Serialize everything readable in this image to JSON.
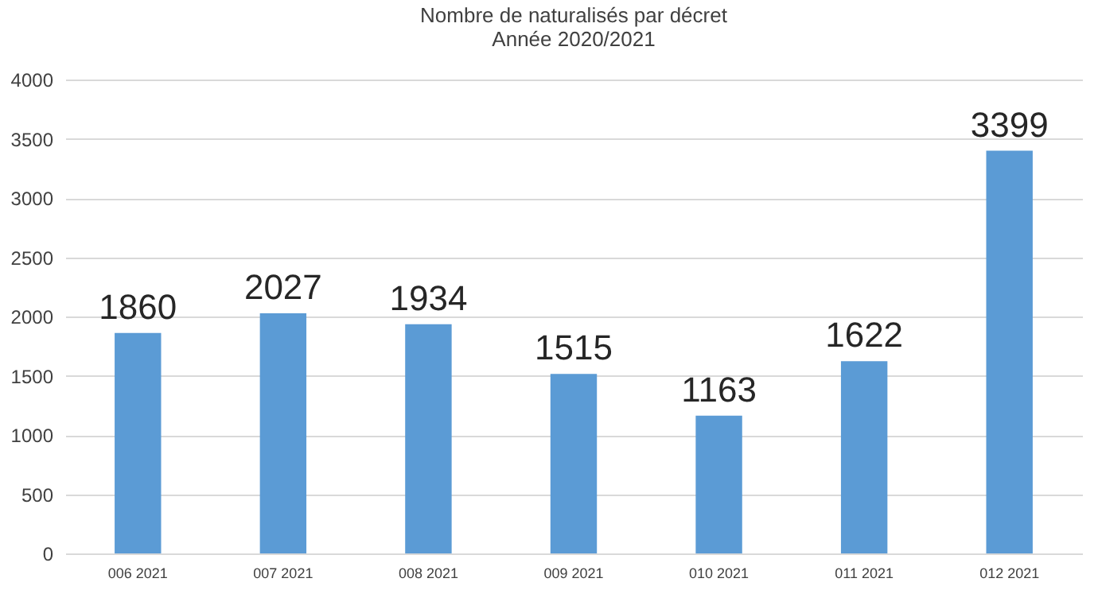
{
  "chart_data": {
    "type": "bar",
    "title": "Nombre de naturalisés par décret",
    "subtitle": "Année 2020/2021",
    "categories": [
      "006 2021",
      "007 2021",
      "008 2021",
      "009 2021",
      "010 2021",
      "011 2021",
      "012 2021"
    ],
    "values": [
      1860,
      2027,
      1934,
      1515,
      1163,
      1622,
      3399
    ],
    "color": "#5b9bd5",
    "ylim": [
      0,
      4000
    ],
    "yticks": [
      0,
      500,
      1000,
      1500,
      2000,
      2500,
      3000,
      3500,
      4000
    ],
    "grid": "y",
    "data_labels": true
  }
}
